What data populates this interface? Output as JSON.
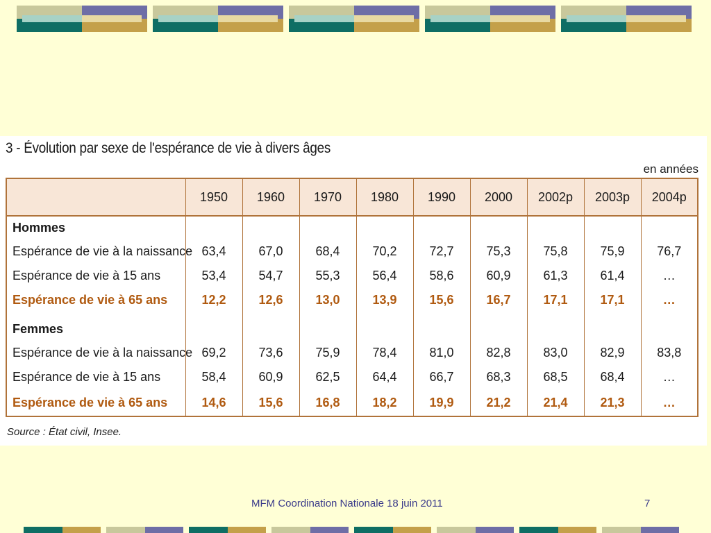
{
  "colors": {
    "background": "#ffffd6",
    "table_border": "#b0733a",
    "header_fill": "#f8e6d7",
    "highlight_text": "#b05a10",
    "footer_text": "#3a3a8a"
  },
  "table": {
    "title": "3 - Évolution par sexe de l'espérance de vie à divers âges",
    "unit": "en années",
    "years": [
      "1950",
      "1960",
      "1970",
      "1980",
      "1990",
      "2000",
      "2002p",
      "2003p",
      "2004p"
    ],
    "groups": [
      {
        "name": "Hommes",
        "rows": [
          {
            "label": "Espérance de vie à la naissance",
            "highlight": false,
            "values": [
              "63,4",
              "67,0",
              "68,4",
              "70,2",
              "72,7",
              "75,3",
              "75,8",
              "75,9",
              "76,7"
            ]
          },
          {
            "label": "Espérance de vie à 15 ans",
            "highlight": false,
            "values": [
              "53,4",
              "54,7",
              "55,3",
              "56,4",
              "58,6",
              "60,9",
              "61,3",
              "61,4",
              "…"
            ]
          },
          {
            "label": "Espérance de vie à 65 ans",
            "highlight": true,
            "values": [
              "12,2",
              "12,6",
              "13,0",
              "13,9",
              "15,6",
              "16,7",
              "17,1",
              "17,1",
              "…"
            ]
          }
        ]
      },
      {
        "name": "Femmes",
        "rows": [
          {
            "label": "Espérance de vie à la naissance",
            "highlight": false,
            "values": [
              "69,2",
              "73,6",
              "75,9",
              "78,4",
              "81,0",
              "82,8",
              "83,0",
              "82,9",
              "83,8"
            ]
          },
          {
            "label": "Espérance de vie à 15 ans",
            "highlight": false,
            "values": [
              "58,4",
              "60,9",
              "62,5",
              "64,4",
              "66,7",
              "68,3",
              "68,5",
              "68,4",
              "…"
            ]
          },
          {
            "label": "Espérance de vie à 65 ans",
            "highlight": true,
            "values": [
              "14,6",
              "15,6",
              "16,8",
              "18,2",
              "19,9",
              "21,2",
              "21,4",
              "21,3",
              "…"
            ]
          }
        ]
      }
    ],
    "source": "Source : État civil, Insee."
  },
  "footer": {
    "text": "MFM Coordination Nationale 18 juin 2011",
    "page_number": "7"
  }
}
